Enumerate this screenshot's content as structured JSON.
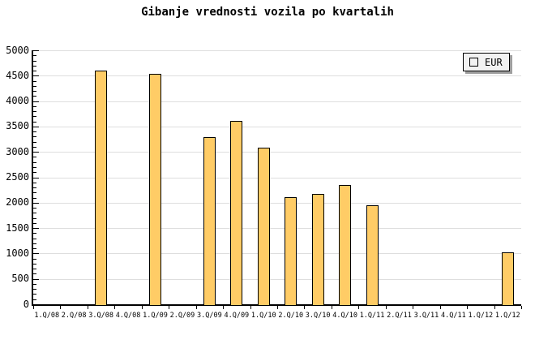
{
  "title": "Gibanje vrednosti vozila po kvartalih",
  "legend": {
    "label": "EUR"
  },
  "colors": {
    "background": "#FFFFFF",
    "bar_fill": "#FFCC66",
    "bar_border": "#000000",
    "gridline": "#DEDEDE",
    "axis": "#000000",
    "legend_bg": "#F2F2F2",
    "legend_shadow": "#9E9E9E"
  },
  "chart_data": {
    "type": "bar",
    "title": "Gibanje vrednosti vozila po kvartalih",
    "series_name": "EUR",
    "categories": [
      "1.Q/08",
      "2.Q/08",
      "3.Q/08",
      "4.Q/08",
      "1.Q/09",
      "2.Q/09",
      "3.Q/09",
      "4.Q/09",
      "1.Q/10",
      "2.Q/10",
      "3.Q/10",
      "4.Q/10",
      "1.Q/11",
      "2.Q/11",
      "3.Q/11",
      "4.Q/11",
      "1.Q/12",
      "1.Q/12"
    ],
    "values": [
      null,
      null,
      4620,
      null,
      4550,
      null,
      3300,
      3620,
      3100,
      2120,
      2190,
      2370,
      1970,
      null,
      null,
      null,
      null,
      1040
    ],
    "xlabel": "",
    "ylabel": "",
    "ylim": [
      0,
      5000
    ],
    "ytick_step": 500,
    "yticks": [
      0,
      500,
      1000,
      1500,
      2000,
      2500,
      3000,
      3500,
      4000,
      4500,
      5000
    ],
    "yminor_step": 100,
    "grid": "horizontal",
    "legend_position": "top-right"
  }
}
